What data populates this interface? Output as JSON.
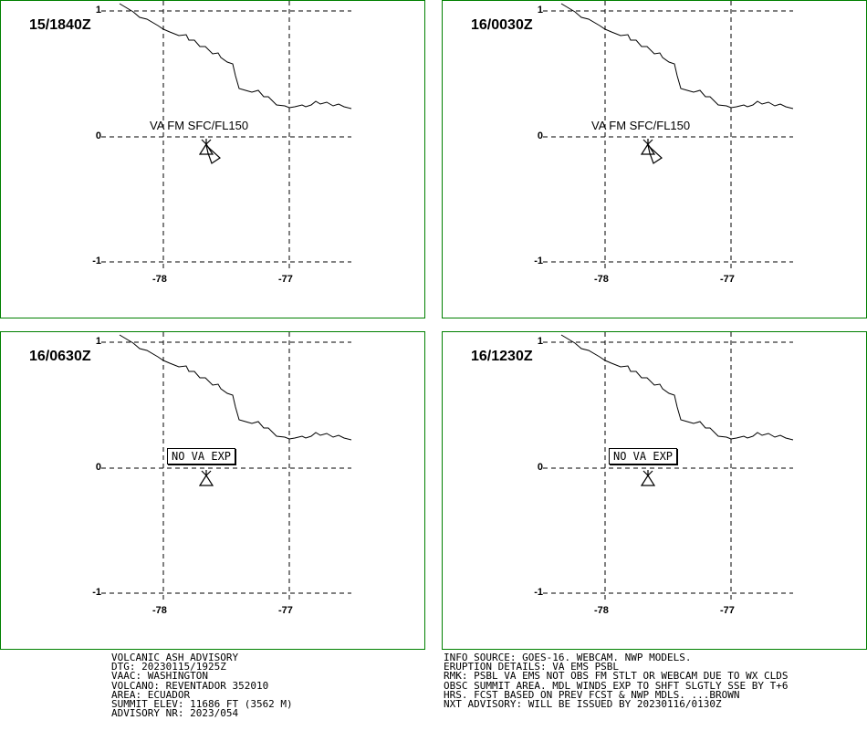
{
  "panels": [
    {
      "time": "15/1840Z",
      "label": "VA FM SFC/FL150",
      "label_type": "plain",
      "has_ash_plume": true
    },
    {
      "time": "16/0030Z",
      "label": "VA FM SFC/FL150",
      "label_type": "plain",
      "has_ash_plume": true
    },
    {
      "time": "16/0630Z",
      "label": "NO VA EXP",
      "label_type": "boxed",
      "has_ash_plume": false
    },
    {
      "time": "16/1230Z",
      "label": "NO VA EXP",
      "label_type": "boxed",
      "has_ash_plume": false
    }
  ],
  "axes": {
    "lat_ticks": [
      "1",
      "0",
      "-1"
    ],
    "lon_ticks": [
      "-78",
      "-77"
    ]
  },
  "advisory_left": [
    "VOLCANIC ASH ADVISORY",
    "DTG: 20230115/1925Z",
    "VAAC: WASHINGTON",
    "VOLCANO: REVENTADOR 352010",
    "AREA: ECUADOR",
    "SUMMIT ELEV: 11686 FT (3562 M)",
    "ADVISORY NR: 2023/054"
  ],
  "advisory_right": [
    "INFO SOURCE: GOES-16. WEBCAM. NWP MODELS.",
    "ERUPTION DETAILS: VA EMS PSBL",
    "RMK: PSBL VA EMS NOT OBS FM STLT OR WEBCAM DUE TO WX CLDS",
    "OBSC SUMMIT AREA. MDL WINDS EXP TO SHFT SLGTLY SSE BY T+6",
    "HRS. FCST BASED ON PREV FCST & NWP MDLS. ...BROWN",
    "NXT ADVISORY: WILL BE ISSUED BY 20230116/0130Z"
  ],
  "colors": {
    "panel_border": "#008000",
    "lines": "#000000",
    "background": "#ffffff"
  },
  "icons": {
    "volcano": "volcano-icon",
    "ash_plume": "ash-plume-icon"
  }
}
